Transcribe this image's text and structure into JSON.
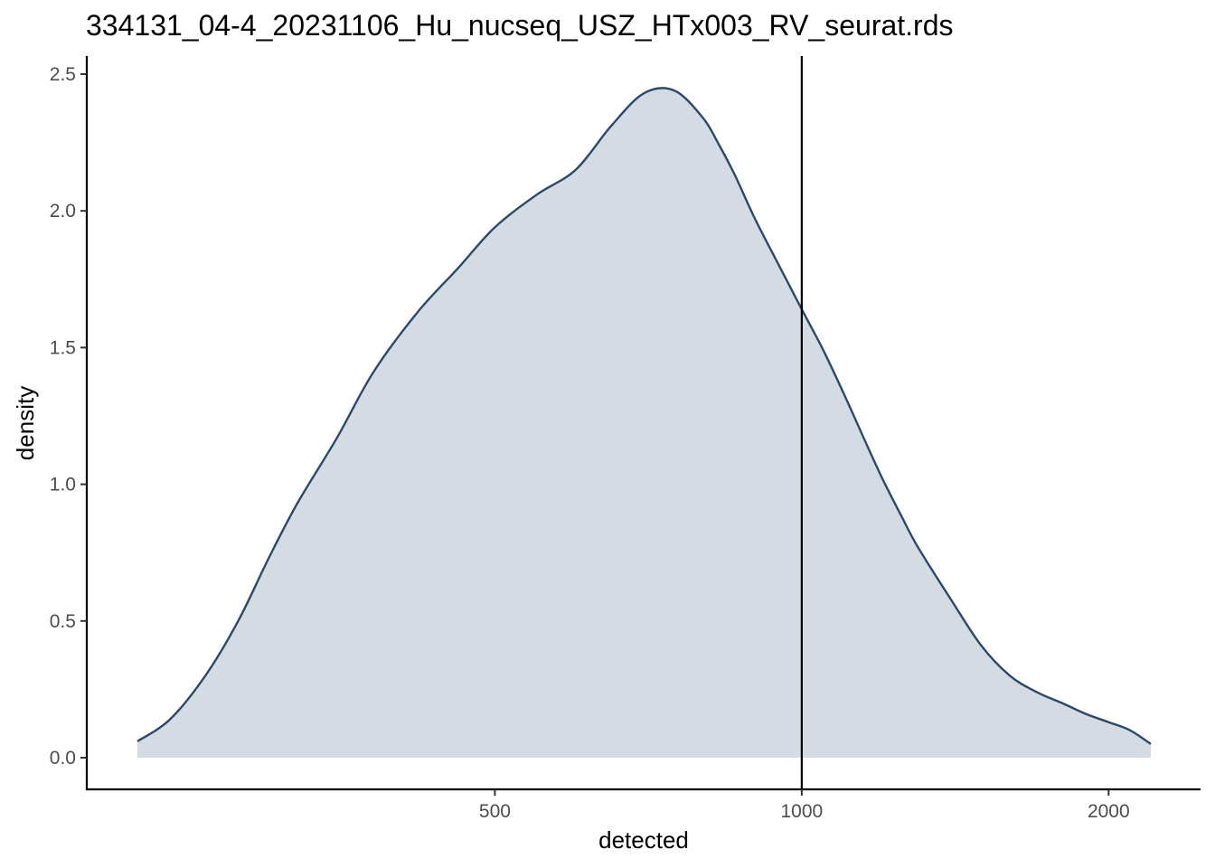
{
  "chart_data": {
    "type": "area",
    "title": "334131_04-4_20231106_Hu_nucseq_USZ_HTx003_RV_seurat.rds",
    "xlabel": "detected",
    "ylabel": "density",
    "x_scale": "log10",
    "xlim": [
      223,
      2200
    ],
    "ylim": [
      0,
      2.5
    ],
    "x_ticks": [
      500,
      1000,
      2000
    ],
    "x_tick_labels": [
      "500",
      "1000",
      "2000"
    ],
    "y_ticks": [
      0,
      0.5,
      1.0,
      1.5,
      2.0,
      2.5
    ],
    "y_tick_labels": [
      "0.0",
      "0.5",
      "1.0",
      "1.5",
      "2.0",
      "2.5"
    ],
    "grid": false,
    "legend": "none",
    "vline": 1000,
    "colors": {
      "line": "#2b4a6b",
      "fill": "#d4dbe2",
      "vline": "#000000"
    },
    "series": [
      {
        "x": [
          223,
          240,
          260,
          280,
          300,
          320,
          350,
          380,
          420,
          460,
          500,
          550,
          600,
          650,
          700,
          750,
          800,
          830,
          860,
          900,
          950,
          1000,
          1050,
          1100,
          1150,
          1200,
          1250,
          1300,
          1400,
          1500,
          1600,
          1700,
          1800,
          1900,
          2000,
          2100,
          2200
        ],
        "y": [
          0.06,
          0.14,
          0.3,
          0.5,
          0.73,
          0.93,
          1.17,
          1.41,
          1.63,
          1.79,
          1.94,
          2.06,
          2.15,
          2.31,
          2.43,
          2.44,
          2.34,
          2.24,
          2.13,
          1.97,
          1.8,
          1.64,
          1.49,
          1.33,
          1.17,
          1.02,
          0.89,
          0.77,
          0.58,
          0.41,
          0.3,
          0.24,
          0.2,
          0.16,
          0.13,
          0.1,
          0.05
        ]
      }
    ]
  }
}
